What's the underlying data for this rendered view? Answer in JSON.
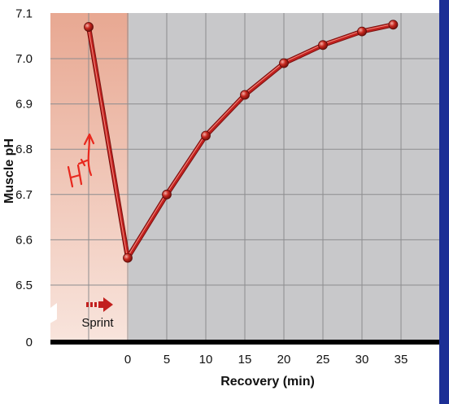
{
  "chart_data": {
    "type": "line",
    "title": "",
    "xlabel": "Recovery (min)",
    "ylabel": "Muscle pH",
    "x_ticks": [
      "0",
      "5",
      "10",
      "15",
      "20",
      "25",
      "30",
      "35"
    ],
    "y_ticks": [
      "0",
      "6.5",
      "6.6",
      "6.7",
      "6.8",
      "6.9",
      "7.0",
      "7.1"
    ],
    "y_axis_break": true,
    "xlim": [
      -5,
      38
    ],
    "ylim": [
      6.5,
      7.1
    ],
    "grid": true,
    "series": [
      {
        "x": [
          -5,
          0,
          5,
          10,
          15,
          20,
          25,
          30,
          34
        ],
        "values": [
          7.07,
          6.56,
          6.7,
          6.83,
          6.92,
          6.99,
          7.03,
          7.06,
          7.075
        ]
      }
    ],
    "sprint_region": {
      "x_from": -5,
      "x_to": 0,
      "label": "Sprint"
    },
    "handwritten_annotation": "H+",
    "colors": {
      "line": "#c2201e",
      "sprint_shade_top": "#e8a892",
      "sprint_shade_bottom": "#f8e4dc",
      "plot_background": "#c8c8ca",
      "grid": "#8d8d8f",
      "frame": "#1c2f95"
    }
  }
}
